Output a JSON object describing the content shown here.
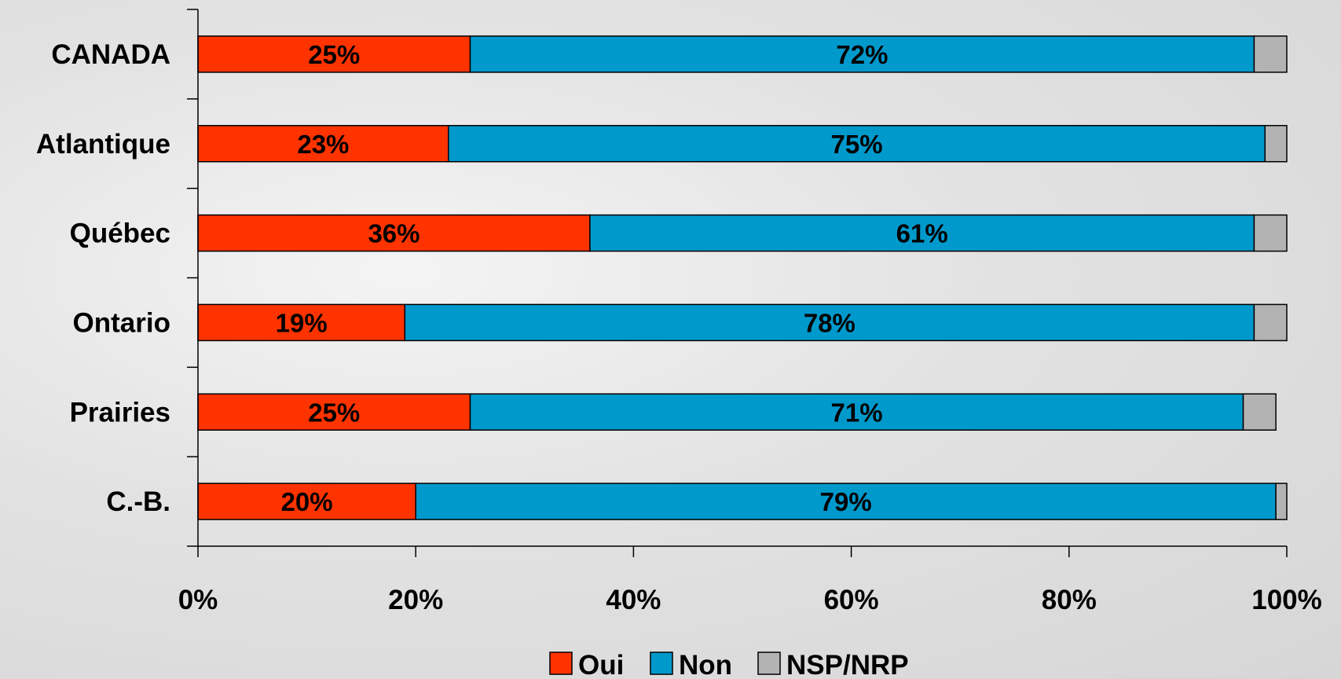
{
  "chart_data": {
    "type": "bar",
    "orientation": "horizontal",
    "stacked": true,
    "categories": [
      "CANADA",
      "Atlantique",
      "Québec",
      "Ontario",
      "Prairies",
      "C.-B."
    ],
    "series": [
      {
        "name": "Oui",
        "values": [
          25,
          23,
          36,
          19,
          25,
          20
        ],
        "labels": [
          "25%",
          "23%",
          "36%",
          "19%",
          "25%",
          "20%"
        ],
        "color": "#ff3300"
      },
      {
        "name": "Non",
        "values": [
          72,
          75,
          61,
          78,
          71,
          79
        ],
        "labels": [
          "72%",
          "75%",
          "61%",
          "78%",
          "71%",
          "79%"
        ],
        "color": "#0099cc"
      },
      {
        "name": "NSP/NRP",
        "values": [
          3,
          2,
          3,
          3,
          3,
          1
        ],
        "color": "#b3b3b3"
      }
    ],
    "xlim": [
      0,
      100
    ],
    "xticks": [
      "0%",
      "20%",
      "40%",
      "60%",
      "80%",
      "100%"
    ],
    "grid": false,
    "legend_position": "bottom"
  }
}
